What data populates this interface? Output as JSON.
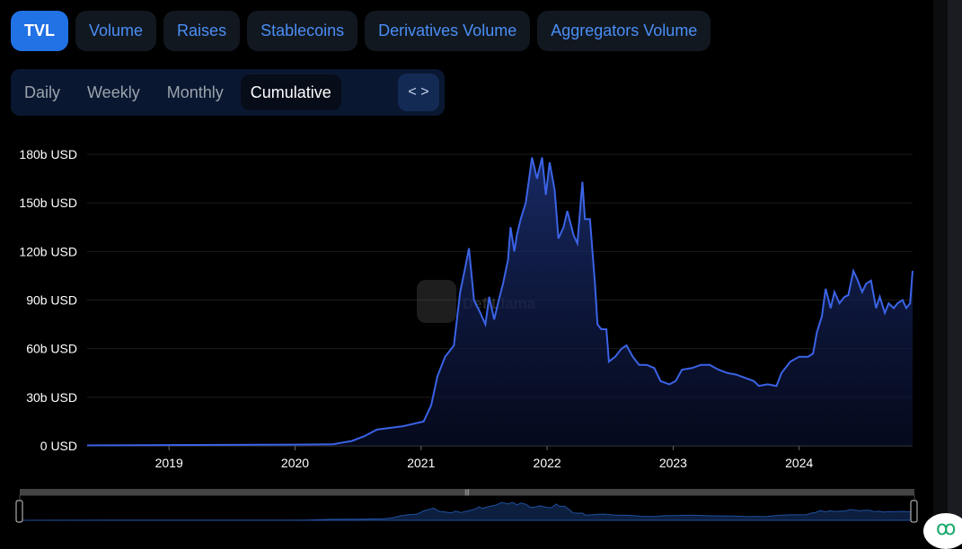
{
  "tabs": [
    "TVL",
    "Volume",
    "Raises",
    "Stablecoins",
    "Derivatives Volume",
    "Aggregators Volume"
  ],
  "periods": [
    "Daily",
    "Weekly",
    "Monthly",
    "Cumulative"
  ],
  "embed_icon": "code-brackets-icon",
  "watermark": "DefiLlama",
  "colors": {
    "accent": "#2172e5",
    "line": "#3b63e6"
  },
  "chart_data": {
    "type": "area",
    "title": "",
    "ylabel": "",
    "ylim": [
      0,
      180
    ],
    "xlim": [
      2018.35,
      2024.9
    ],
    "y_ticks": [
      "0 USD",
      "30b USD",
      "60b USD",
      "90b USD",
      "120b USD",
      "150b USD",
      "180b USD"
    ],
    "y_tick_values": [
      0,
      30,
      60,
      90,
      120,
      150,
      180
    ],
    "x_ticks": [
      "2019",
      "2020",
      "2021",
      "2022",
      "2023",
      "2024"
    ],
    "grid": true,
    "series": [
      {
        "name": "TVL (b USD)",
        "points": [
          [
            2018.35,
            0.3
          ],
          [
            2019,
            0.5
          ],
          [
            2019.5,
            0.6
          ],
          [
            2020,
            0.8
          ],
          [
            2020.3,
            1
          ],
          [
            2020.45,
            3
          ],
          [
            2020.55,
            6
          ],
          [
            2020.65,
            10
          ],
          [
            2020.85,
            12
          ],
          [
            2021.02,
            15
          ],
          [
            2021.08,
            25
          ],
          [
            2021.13,
            43
          ],
          [
            2021.19,
            55
          ],
          [
            2021.26,
            62
          ],
          [
            2021.31,
            95
          ],
          [
            2021.35,
            110
          ],
          [
            2021.38,
            122
          ],
          [
            2021.42,
            90
          ],
          [
            2021.47,
            82
          ],
          [
            2021.51,
            75
          ],
          [
            2021.54,
            92
          ],
          [
            2021.58,
            78
          ],
          [
            2021.61,
            88
          ],
          [
            2021.65,
            100
          ],
          [
            2021.69,
            115
          ],
          [
            2021.71,
            135
          ],
          [
            2021.74,
            120
          ],
          [
            2021.76,
            130
          ],
          [
            2021.79,
            140
          ],
          [
            2021.83,
            150
          ],
          [
            2021.88,
            178
          ],
          [
            2021.92,
            165
          ],
          [
            2021.96,
            178
          ],
          [
            2021.99,
            155
          ],
          [
            2022.02,
            175
          ],
          [
            2022.06,
            158
          ],
          [
            2022.09,
            128
          ],
          [
            2022.13,
            135
          ],
          [
            2022.16,
            145
          ],
          [
            2022.21,
            130
          ],
          [
            2022.24,
            125
          ],
          [
            2022.28,
            163
          ],
          [
            2022.3,
            140
          ],
          [
            2022.34,
            140
          ],
          [
            2022.38,
            100
          ],
          [
            2022.4,
            75
          ],
          [
            2022.43,
            72
          ],
          [
            2022.47,
            72
          ],
          [
            2022.49,
            52
          ],
          [
            2022.54,
            55
          ],
          [
            2022.59,
            60
          ],
          [
            2022.63,
            62
          ],
          [
            2022.68,
            55
          ],
          [
            2022.73,
            50
          ],
          [
            2022.79,
            50
          ],
          [
            2022.85,
            48
          ],
          [
            2022.9,
            40
          ],
          [
            2022.97,
            38
          ],
          [
            2023.02,
            40
          ],
          [
            2023.07,
            47
          ],
          [
            2023.15,
            48
          ],
          [
            2023.22,
            50
          ],
          [
            2023.29,
            50
          ],
          [
            2023.36,
            47
          ],
          [
            2023.43,
            45
          ],
          [
            2023.5,
            44
          ],
          [
            2023.57,
            42
          ],
          [
            2023.64,
            40
          ],
          [
            2023.68,
            37
          ],
          [
            2023.75,
            38
          ],
          [
            2023.82,
            37
          ],
          [
            2023.86,
            45
          ],
          [
            2023.93,
            52
          ],
          [
            2024.0,
            55
          ],
          [
            2024.07,
            55
          ],
          [
            2024.11,
            57
          ],
          [
            2024.14,
            70
          ],
          [
            2024.18,
            80
          ],
          [
            2024.21,
            97
          ],
          [
            2024.25,
            85
          ],
          [
            2024.28,
            95
          ],
          [
            2024.32,
            88
          ],
          [
            2024.36,
            92
          ],
          [
            2024.39,
            93
          ],
          [
            2024.43,
            108
          ],
          [
            2024.46,
            103
          ],
          [
            2024.5,
            95
          ],
          [
            2024.53,
            100
          ],
          [
            2024.57,
            102
          ],
          [
            2024.61,
            85
          ],
          [
            2024.64,
            92
          ],
          [
            2024.68,
            82
          ],
          [
            2024.71,
            88
          ],
          [
            2024.75,
            85
          ],
          [
            2024.78,
            88
          ],
          [
            2024.82,
            90
          ],
          [
            2024.85,
            85
          ],
          [
            2024.88,
            88
          ],
          [
            2024.9,
            108
          ]
        ]
      }
    ]
  }
}
